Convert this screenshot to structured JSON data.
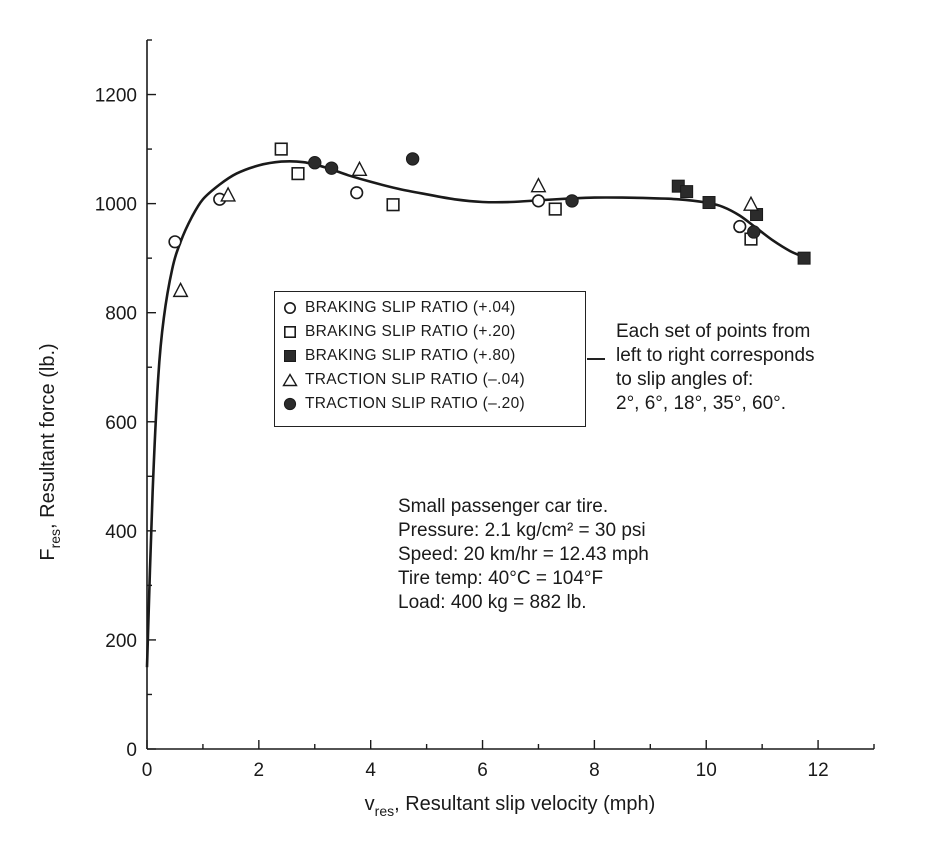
{
  "chart_data": {
    "type": "scatter",
    "xlabel": {
      "symbol": "v",
      "sub": "res",
      "text": ", Resultant slip velocity (mph)"
    },
    "ylabel": {
      "symbol": "F",
      "sub": "res",
      "text": ", Resultant force (lb.)"
    },
    "xlim": [
      0,
      13
    ],
    "ylim": [
      0,
      1300
    ],
    "x_ticks": [
      0,
      2,
      4,
      6,
      8,
      10,
      12
    ],
    "y_ticks": [
      0,
      200,
      400,
      600,
      800,
      1000,
      1200
    ],
    "x_tick_labels": [
      "0",
      "2",
      "4",
      "6",
      "8",
      "10",
      "12"
    ],
    "y_tick_labels": [
      "0",
      "200",
      "400",
      "600",
      "800",
      "1000",
      "1200"
    ],
    "grid": false,
    "legend_placement": "center",
    "series": [
      {
        "name": "BRAKING SLIP RATIO (+.04)",
        "marker": "circle-open",
        "points": [
          [
            0.5,
            930
          ],
          [
            1.3,
            1008
          ],
          [
            3.75,
            1020
          ],
          [
            7.0,
            1005
          ],
          [
            10.6,
            958
          ]
        ]
      },
      {
        "name": "BRAKING SLIP RATIO (+.20)",
        "marker": "square-open",
        "points": [
          [
            2.4,
            1100
          ],
          [
            2.7,
            1055
          ],
          [
            4.4,
            998
          ],
          [
            7.3,
            990
          ],
          [
            10.8,
            935
          ]
        ]
      },
      {
        "name": "BRAKING SLIP RATIO (+.80)",
        "marker": "square-filled",
        "points": [
          [
            9.5,
            1032
          ],
          [
            9.65,
            1022
          ],
          [
            10.05,
            1002
          ],
          [
            10.9,
            980
          ],
          [
            11.75,
            900
          ]
        ]
      },
      {
        "name": "TRACTION SLIP RATIO (–.04)",
        "marker": "triangle-open",
        "points": [
          [
            0.6,
            840
          ],
          [
            1.45,
            1015
          ],
          [
            3.8,
            1062
          ],
          [
            7.0,
            1032
          ],
          [
            10.8,
            998
          ]
        ]
      },
      {
        "name": "TRACTION SLIP RATIO (–.20)",
        "marker": "circle-filled",
        "points": [
          [
            3.0,
            1075
          ],
          [
            3.3,
            1065
          ],
          [
            4.75,
            1082
          ],
          [
            7.6,
            1005
          ],
          [
            10.85,
            948
          ]
        ]
      }
    ],
    "fit_curve": [
      [
        0,
        150
      ],
      [
        0.1,
        470
      ],
      [
        0.2,
        680
      ],
      [
        0.3,
        790
      ],
      [
        0.45,
        880
      ],
      [
        0.6,
        930
      ],
      [
        0.8,
        975
      ],
      [
        1.0,
        1008
      ],
      [
        1.3,
        1035
      ],
      [
        1.6,
        1055
      ],
      [
        2.0,
        1070
      ],
      [
        2.4,
        1077
      ],
      [
        2.8,
        1076
      ],
      [
        3.2,
        1066
      ],
      [
        3.6,
        1052
      ],
      [
        4.0,
        1040
      ],
      [
        4.5,
        1027
      ],
      [
        5.0,
        1017
      ],
      [
        5.5,
        1008
      ],
      [
        6.0,
        1003
      ],
      [
        6.5,
        1003
      ],
      [
        7.0,
        1006
      ],
      [
        7.5,
        1009
      ],
      [
        8.0,
        1011
      ],
      [
        8.5,
        1011
      ],
      [
        9.0,
        1010
      ],
      [
        9.5,
        1008
      ],
      [
        10.0,
        1002
      ],
      [
        10.3,
        994
      ],
      [
        10.6,
        978
      ],
      [
        10.9,
        955
      ],
      [
        11.2,
        932
      ],
      [
        11.5,
        913
      ],
      [
        11.75,
        902
      ]
    ],
    "annotations": {
      "slip_angles_note": [
        "Each set of points from",
        "left to right corresponds",
        "to slip angles of:",
        "2°, 6°, 18°, 35°, 60°."
      ],
      "conditions_note": [
        "Small passenger car tire.",
        "Pressure: 2.1 kg/cm² = 30 psi",
        "Speed: 20 km/hr = 12.43 mph",
        "Tire temp: 40°C = 104°F",
        "Load: 400 kg = 882 lb."
      ]
    },
    "colors": {
      "ink": "#1a1a1a",
      "filled_marker": "#2b2b2b",
      "background": "#ffffff"
    }
  }
}
